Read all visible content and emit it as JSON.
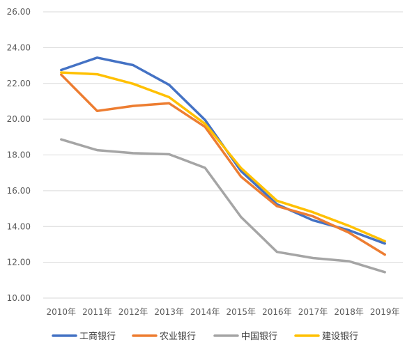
{
  "chart_data": {
    "type": "line",
    "title": "",
    "xlabel": "",
    "ylabel": "",
    "categories": [
      "2010年",
      "2011年",
      "2012年",
      "2013年",
      "2014年",
      "2015年",
      "2016年",
      "2017年",
      "2018年",
      "2019年"
    ],
    "ylim": [
      10.0,
      26.0
    ],
    "yticks": [
      "10.00",
      "12.00",
      "14.00",
      "16.00",
      "18.00",
      "20.00",
      "22.00",
      "24.00",
      "26.00"
    ],
    "grid": true,
    "legend_position": "bottom",
    "series": [
      {
        "name": "工商银行",
        "color": "#4472c4",
        "values": [
          22.75,
          23.44,
          23.02,
          21.92,
          19.96,
          17.1,
          15.24,
          14.35,
          13.79,
          13.05
        ]
      },
      {
        "name": "农业银行",
        "color": "#ed7d31",
        "values": [
          22.49,
          20.46,
          20.74,
          20.89,
          19.57,
          16.79,
          15.14,
          14.57,
          13.66,
          12.43
        ]
      },
      {
        "name": "中国银行",
        "color": "#a5a5a5",
        "values": [
          18.87,
          18.27,
          18.1,
          18.04,
          17.28,
          14.53,
          12.58,
          12.24,
          12.06,
          11.45
        ]
      },
      {
        "name": "建设银行",
        "color": "#ffc000",
        "values": [
          22.61,
          22.51,
          21.98,
          21.23,
          19.74,
          17.27,
          15.44,
          14.8,
          14.04,
          13.18
        ]
      }
    ]
  }
}
